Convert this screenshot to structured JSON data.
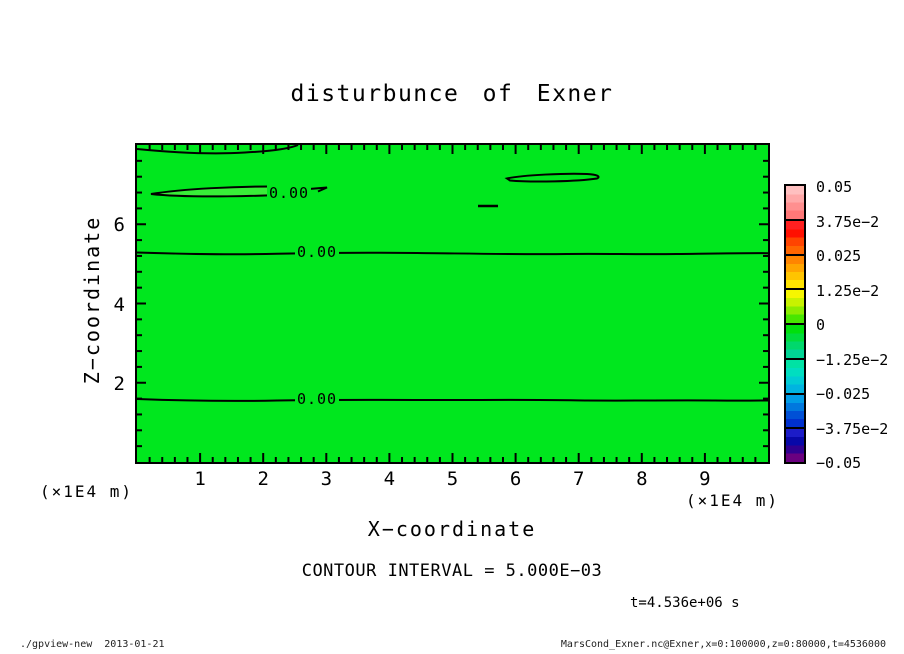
{
  "title": "disturbunce of Exner",
  "axes": {
    "x": {
      "label": "X−coordinate",
      "unit": "(×1E4 m)",
      "ticks": [
        "1",
        "2",
        "3",
        "4",
        "5",
        "6",
        "7",
        "8",
        "9"
      ]
    },
    "y": {
      "label": "Z−coordinate",
      "unit": "(×1E4 m)",
      "ticks": [
        "6",
        "4",
        "2"
      ]
    }
  },
  "contour_labels": [
    "0.00",
    "0.00",
    "0.00"
  ],
  "colors": {
    "plot_fill": "#00e71e",
    "lens_fill": "#38ee38",
    "line_color": "#000000"
  },
  "colorbar": {
    "labels": [
      "0.05",
      "3.75e−2",
      "0.025",
      "1.25e−2",
      "0",
      "−1.25e−2",
      "−0.025",
      "−3.75e−2",
      "−0.05"
    ],
    "boxes": [
      [
        "#ffc0c0",
        "#ffa8a8",
        "#ff8f8f",
        "#ff7878"
      ],
      [
        "#ff2020",
        "#ff1000",
        "#ff4400",
        "#ff6600"
      ],
      [
        "#ff8500",
        "#ffa500",
        "#ffc400",
        "#ffe300"
      ],
      [
        "#f6f600",
        "#c8f200",
        "#8cec00",
        "#48e600"
      ],
      [
        "#00e00c",
        "#00dc3c",
        "#00d86c",
        "#00d494"
      ],
      [
        "#00e2a4",
        "#00dec0",
        "#00ccd4",
        "#00b4e0"
      ],
      [
        "#009ce6",
        "#0078de",
        "#0050d6",
        "#0030ce"
      ],
      [
        "#1c1cc8",
        "#0808a8",
        "#300090",
        "#6a0080"
      ]
    ]
  },
  "annotations": {
    "contour_interval": "CONTOUR INTERVAL = 5.000E−03",
    "time": "t=4.536e+06 s"
  },
  "footer": {
    "left": "./gpview-new  2013-01-21",
    "right": "MarsCond_Exner.nc@Exner,x=0:100000,z=0:80000,t=4536000"
  },
  "chart_data": {
    "type": "heatmap",
    "title": "disturbunce of Exner",
    "xlabel": "X-coordinate (×1E4 m)",
    "ylabel": "Z-coordinate (×1E4 m)",
    "xlim": [
      0,
      10
    ],
    "ylim": [
      0,
      8
    ],
    "x_ticks": [
      1,
      2,
      3,
      4,
      5,
      6,
      7,
      8,
      9
    ],
    "y_ticks": [
      2,
      4,
      6
    ],
    "x_minor_step": 0.2,
    "y_minor_step": 0.4,
    "contour_interval": 0.005,
    "colorbar_levels": [
      -0.05,
      -0.0375,
      -0.025,
      -0.0125,
      0,
      0.0125,
      0.025,
      0.0375,
      0.05
    ],
    "field_description": "Exner function disturbance; field is approximately 0 everywhere (single green fill corresponding to the 0 level), with 0.00 contour lines.",
    "zero_contours": [
      {
        "shape": "sliver attached to top boundary",
        "x": [
          0.0,
          2.55
        ],
        "z": 7.9
      },
      {
        "shape": "closed lens, labeled 0.00",
        "x": [
          0.22,
          2.98
        ],
        "z": 6.85
      },
      {
        "shape": "closed lens",
        "x": [
          5.86,
          7.35
        ],
        "z": 7.2
      },
      {
        "shape": "short segment",
        "x": [
          5.4,
          5.7
        ],
        "z": 6.45
      },
      {
        "shape": "open line across full width, labeled 0.00",
        "z": 5.28
      },
      {
        "shape": "open line across full width, labeled 0.00",
        "z": 1.57
      }
    ],
    "time": "t=4.536e+06 s",
    "grid": false,
    "legend_position": "right colorbar"
  }
}
